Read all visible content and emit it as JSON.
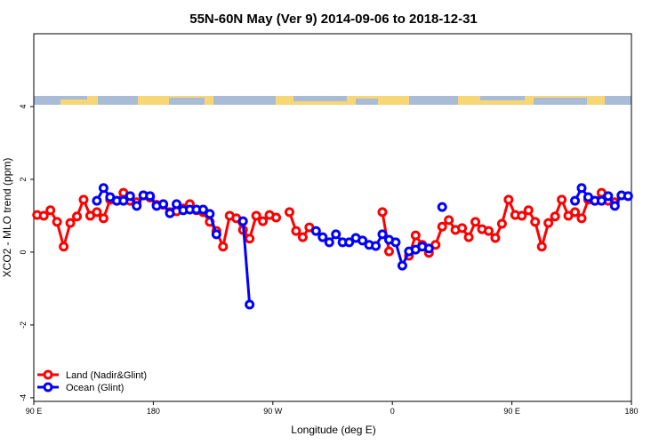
{
  "chart_data": {
    "type": "line",
    "title": "55N-60N May (Ver 9)   2014-09-06 to 2018-12-31",
    "xlabel": "Longitude (deg E)",
    "ylabel": "XCO2 - MLO trend (ppm)",
    "xlim": [
      90,
      540
    ],
    "ylim": [
      -4.1,
      6
    ],
    "xticks": [
      {
        "value": 90,
        "label": "90 E"
      },
      180,
      {
        "value": 270,
        "label": "90 W"
      },
      {
        "value": 360,
        "label": "0"
      },
      {
        "value": 450,
        "label": "90 E"
      },
      {
        "value": 540,
        "label": "180"
      }
    ],
    "yticks": [
      -4,
      -2,
      0,
      2,
      4
    ],
    "legend": "lower left",
    "series": [
      {
        "name": "Land (Nadir&Glint)",
        "color": "#ff0000",
        "x": [
          92.5,
          97.5,
          102.5,
          107.5,
          112.5,
          117.5,
          122.5,
          127.5,
          132.5,
          137.5,
          142.5,
          147.5,
          152.5,
          157.5,
          162.5,
          167.5,
          172.5,
          177.5,
          182.5,
          187.5,
          192.5,
          197.5,
          202.5,
          207.5,
          212.5,
          217.5,
          222.5,
          227.5,
          232.5,
          237.5,
          242.5,
          247.5,
          252.5,
          257.5,
          262.5,
          267.5,
          272.5,
          277.5,
          282.5,
          287.5,
          292.5,
          297.5,
          302.5,
          352.5,
          357.5,
          367.5,
          372.5,
          377.5,
          382.5,
          387.5,
          392.5,
          397.5,
          402.5,
          407.5,
          412.5,
          417.5,
          422.5,
          427.5,
          432.5,
          437.5,
          442.5,
          447.5,
          452.5,
          457.5,
          462.5,
          467.5,
          472.5,
          477.5,
          482.5,
          487.5,
          492.5,
          497.5,
          502.5,
          507.5,
          512.5,
          517.5,
          522.5,
          527.5
        ],
        "values": [
          1.02,
          1.0,
          1.15,
          0.83,
          0.15,
          0.8,
          0.98,
          1.44,
          1.0,
          1.1,
          0.93,
          1.44,
          1.41,
          1.63,
          1.41,
          1.37,
          1.56,
          1.5,
          1.3,
          1.3,
          1.1,
          1.12,
          1.2,
          1.32,
          1.15,
          1.1,
          0.83,
          0.58,
          0.15,
          1.0,
          0.93,
          0.61,
          0.37,
          1.0,
          0.85,
          1.02,
          0.95,
          null,
          1.1,
          0.58,
          0.41,
          0.68,
          null,
          1.1,
          0.02,
          null,
          -0.1,
          0.46,
          0.2,
          -0.02,
          0.2,
          0.7,
          0.88,
          0.61,
          0.66,
          0.41,
          0.83,
          0.63,
          0.58,
          0.39,
          0.78,
          1.44,
          1.02,
          1.0,
          1.15,
          0.83,
          0.15,
          0.8,
          0.98,
          1.44,
          1.0,
          1.1,
          0.93,
          1.44,
          1.41,
          1.63,
          1.41,
          1.37
        ]
      },
      {
        "name": "Ocean (Glint)",
        "color": "#0000ff",
        "x": [
          137.5,
          142.5,
          147.5,
          152.5,
          157.5,
          162.5,
          167.5,
          172.5,
          177.5,
          182.5,
          187.5,
          192.5,
          197.5,
          202.5,
          207.5,
          212.5,
          217.5,
          222.5,
          227.5,
          237.5,
          247.5,
          252.5,
          277.5,
          302.5,
          307.5,
          312.5,
          317.5,
          322.5,
          327.5,
          332.5,
          337.5,
          342.5,
          347.5,
          352.5,
          357.5,
          362.5,
          367.5,
          372.5,
          377.5,
          382.5,
          387.5,
          392.5,
          397.5,
          402.5,
          497.5,
          502.5,
          507.5,
          512.5,
          517.5,
          522.5,
          527.5,
          532.5,
          537.5
        ],
        "values": [
          1.41,
          1.76,
          1.51,
          1.41,
          1.41,
          1.54,
          1.27,
          1.56,
          1.54,
          1.27,
          1.32,
          1.07,
          1.32,
          1.15,
          1.17,
          1.17,
          1.17,
          1.05,
          0.49,
          null,
          0.85,
          -1.44,
          null,
          0.58,
          0.41,
          0.27,
          0.49,
          0.27,
          0.27,
          0.39,
          0.32,
          0.2,
          0.17,
          0.49,
          0.34,
          0.27,
          -0.37,
          0.02,
          0.07,
          0.15,
          0.1,
          null,
          1.24,
          null,
          1.41,
          1.76,
          1.51,
          1.41,
          1.41,
          1.54,
          1.27,
          1.56,
          1.54
        ]
      }
    ]
  }
}
